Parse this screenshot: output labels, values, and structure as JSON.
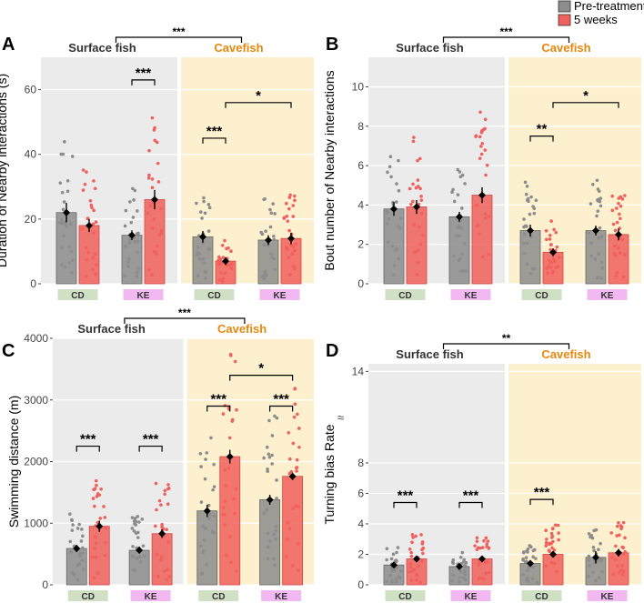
{
  "legend": {
    "pre_label": "Pre-treatment",
    "post_label": "5 weeks",
    "pre_color": "#8c8c8c",
    "post_color": "#f0605c"
  },
  "colors": {
    "surface_bg": "#ebebeb",
    "cave_bg": "#fdf0cf",
    "cave_text": "#e8870e",
    "cd_tag": "#cfe0c5",
    "ke_tag": "#f2b8f2"
  },
  "chart_data": [
    {
      "type": "bar",
      "panel": "A",
      "ylabel": "Duration of Nearby interactions (s)",
      "ylim": [
        0,
        70
      ],
      "ticks": [
        0,
        20,
        40,
        60
      ],
      "groups": [
        "Surface fish",
        "Cavefish"
      ],
      "group_sig": "***",
      "categories": [
        "CD",
        "KE",
        "CD",
        "KE"
      ],
      "series": [
        {
          "name": "Pre-treatment",
          "values": [
            22,
            15,
            14.5,
            13.5
          ],
          "errors": [
            3,
            1.5,
            1.8,
            1.5
          ]
        },
        {
          "name": "5 weeks",
          "values": [
            18,
            26,
            7,
            14
          ],
          "errors": [
            2,
            3,
            1.2,
            1.8
          ]
        }
      ],
      "pair_sig": [
        {
          "group": 0,
          "from": 0,
          "to": 1,
          "cat": 1,
          "label": "***",
          "level": 63
        },
        {
          "group": 1,
          "from": 0,
          "to": 1,
          "cat": 0,
          "label": "***",
          "level": 45
        },
        {
          "group": 1,
          "from": 1,
          "to": 3,
          "cat": -1,
          "label": "*",
          "level": 56
        }
      ]
    },
    {
      "type": "bar",
      "panel": "B",
      "ylabel": "Bout number of Nearby interactions",
      "ylim": [
        0,
        11.5
      ],
      "ticks": [
        0,
        2,
        4,
        6,
        8,
        10
      ],
      "groups": [
        "Surface fish",
        "Cavefish"
      ],
      "group_sig": "***",
      "categories": [
        "CD",
        "KE",
        "CD",
        "KE"
      ],
      "series": [
        {
          "name": "Pre-treatment",
          "values": [
            3.8,
            3.4,
            2.7,
            2.7
          ],
          "errors": [
            0.35,
            0.25,
            0.3,
            0.25
          ]
        },
        {
          "name": "5 weeks",
          "values": [
            3.9,
            4.5,
            1.6,
            2.5
          ],
          "errors": [
            0.35,
            0.4,
            0.2,
            0.3
          ]
        }
      ],
      "pair_sig": [
        {
          "group": 1,
          "from": 0,
          "to": 1,
          "cat": 0,
          "label": "**",
          "level": 7.5
        },
        {
          "group": 1,
          "from": 1,
          "to": 3,
          "cat": -1,
          "label": "*",
          "level": 9.2
        }
      ]
    },
    {
      "type": "bar",
      "panel": "C",
      "ylabel": "Swimming distance (m)",
      "ylim": [
        0,
        4000
      ],
      "ticks": [
        0,
        1000,
        2000,
        3000,
        4000
      ],
      "groups": [
        "Surface fish",
        "Cavefish"
      ],
      "group_sig": "***",
      "categories": [
        "CD",
        "KE",
        "CD",
        "KE"
      ],
      "series": [
        {
          "name": "Pre-treatment",
          "values": [
            590,
            560,
            1200,
            1380
          ],
          "errors": [
            60,
            50,
            100,
            80
          ]
        },
        {
          "name": "5 weeks",
          "values": [
            950,
            830,
            2080,
            1760
          ],
          "errors": [
            90,
            70,
            110,
            60
          ]
        }
      ],
      "pair_sig": [
        {
          "group": 0,
          "from": 0,
          "to": 1,
          "cat": 0,
          "label": "***",
          "level": 2250
        },
        {
          "group": 0,
          "from": 0,
          "to": 1,
          "cat": 1,
          "label": "***",
          "level": 2250
        },
        {
          "group": 1,
          "from": 0,
          "to": 1,
          "cat": 0,
          "label": "***",
          "level": 2900
        },
        {
          "group": 1,
          "from": 0,
          "to": 1,
          "cat": 1,
          "label": "***",
          "level": 2900
        },
        {
          "group": 1,
          "from": 1,
          "to": 3,
          "cat": -1,
          "label": "*",
          "level": 3400
        }
      ]
    },
    {
      "type": "bar",
      "panel": "D",
      "ylabel": "Turning bias Rate",
      "ylim": [
        0,
        14.5
      ],
      "ticks": [
        0,
        2,
        4,
        6,
        8,
        14
      ],
      "axis_break": "≈",
      "groups": [
        "Surface fish",
        "Cavefish"
      ],
      "group_sig": "**",
      "categories": [
        "CD",
        "KE",
        "CD",
        "KE"
      ],
      "series": [
        {
          "name": "Pre-treatment",
          "values": [
            1.3,
            1.2,
            1.4,
            1.8
          ],
          "errors": [
            0.1,
            0.1,
            0.1,
            0.4
          ]
        },
        {
          "name": "5 weeks",
          "values": [
            1.7,
            1.7,
            2.0,
            2.1
          ],
          "errors": [
            0.15,
            0.15,
            0.15,
            0.25
          ]
        }
      ],
      "pair_sig": [
        {
          "group": 0,
          "from": 0,
          "to": 1,
          "cat": 0,
          "label": "***",
          "level": 5.4
        },
        {
          "group": 0,
          "from": 0,
          "to": 1,
          "cat": 1,
          "label": "***",
          "level": 5.4
        },
        {
          "group": 1,
          "from": 0,
          "to": 1,
          "cat": 0,
          "label": "***",
          "level": 5.6
        }
      ]
    }
  ]
}
